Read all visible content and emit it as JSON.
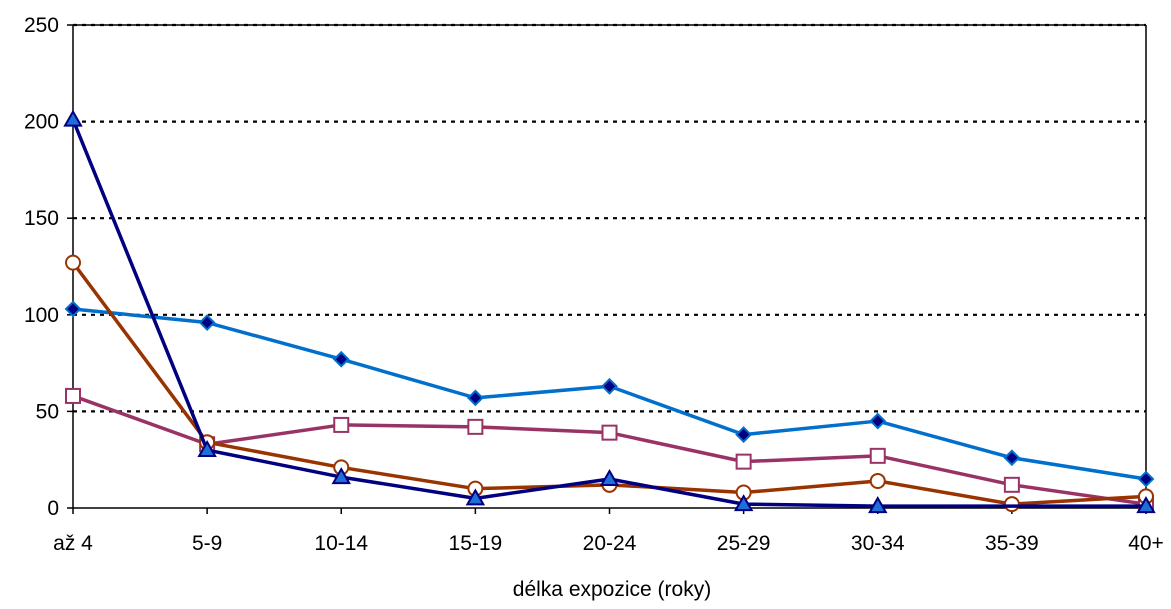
{
  "chart_data": {
    "type": "line",
    "title": "",
    "xlabel": "délka expozice (roky)",
    "ylabel": "",
    "categories": [
      "až 4",
      "5-9",
      "10-14",
      "15-19",
      "20-24",
      "25-29",
      "30-34",
      "35-39",
      "40+"
    ],
    "ylim": [
      0,
      250
    ],
    "yticks": [
      0,
      50,
      100,
      150,
      200,
      250
    ],
    "grid": "horizontal dotted",
    "legend": "none",
    "series": [
      {
        "color": "#0070CC",
        "marker": "diamond",
        "values": [
          103,
          96,
          77,
          57,
          63,
          38,
          45,
          26,
          15
        ]
      },
      {
        "color": "#993366",
        "marker": "square-open",
        "values": [
          58,
          33,
          43,
          42,
          39,
          24,
          27,
          12,
          2
        ]
      },
      {
        "color": "#993300",
        "marker": "circle-open",
        "values": [
          127,
          34,
          21,
          10,
          12,
          8,
          14,
          2,
          6
        ]
      },
      {
        "color": "#000080",
        "marker": "triangle",
        "values": [
          201,
          30,
          16,
          5,
          15,
          2,
          1,
          null,
          1
        ]
      }
    ]
  }
}
